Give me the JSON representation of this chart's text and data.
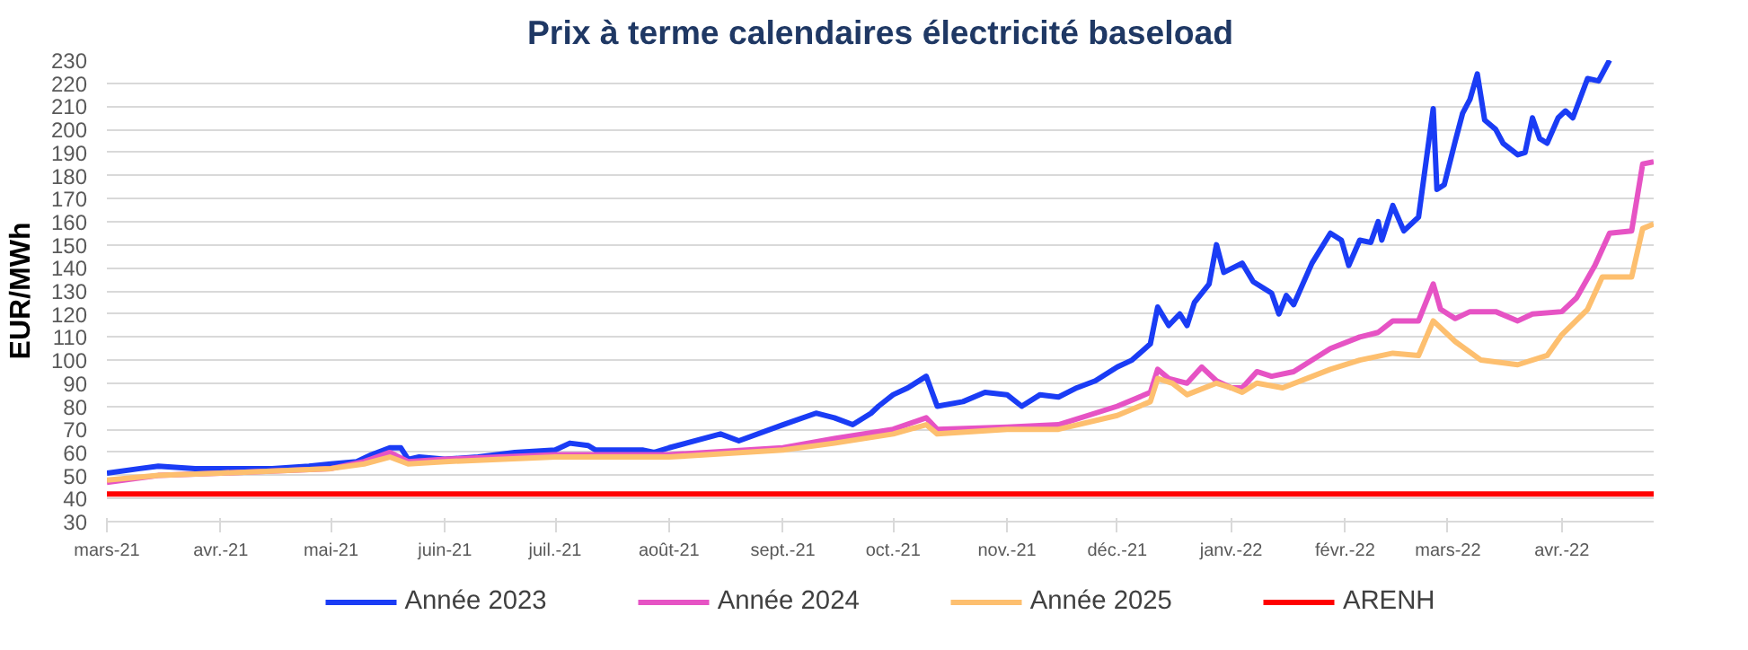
{
  "chart_data": {
    "type": "line",
    "title": "Prix à terme calendaires électricité baseload",
    "ylabel": "EUR/MWh",
    "xlim": [
      "2021-03-01",
      "2022-04-26"
    ],
    "xticks": [
      {
        "value": "2021-03-01",
        "label": "mars-21"
      },
      {
        "value": "2021-04-01",
        "label": "avr.-21"
      },
      {
        "value": "2021-05-01",
        "label": "mai-21"
      },
      {
        "value": "2021-06-01",
        "label": "juin-21"
      },
      {
        "value": "2021-07-01",
        "label": "juil.-21"
      },
      {
        "value": "2021-08-01",
        "label": "août-21"
      },
      {
        "value": "2021-09-01",
        "label": "sept.-21"
      },
      {
        "value": "2021-10-01",
        "label": "oct.-21"
      },
      {
        "value": "2021-11-01",
        "label": "nov.-21"
      },
      {
        "value": "2021-12-01",
        "label": "déc.-21"
      },
      {
        "value": "2022-01-01",
        "label": "janv.-22"
      },
      {
        "value": "2022-02-01",
        "label": "févr.-22"
      },
      {
        "value": "2022-03-01",
        "label": "mars-22"
      },
      {
        "value": "2022-04-01",
        "label": "avr.-22"
      }
    ],
    "ylim": [
      30,
      230
    ],
    "yticks": [
      30,
      40,
      50,
      60,
      70,
      80,
      90,
      100,
      110,
      120,
      130,
      140,
      150,
      160,
      170,
      180,
      190,
      200,
      210,
      220,
      230
    ],
    "grid": "y",
    "legend": "bottom",
    "line_style": "solid",
    "marker": "none",
    "series": [
      {
        "name": "Année 2023",
        "color": "#1a3cf5",
        "x": [
          "2021-03-01",
          "2021-03-10",
          "2021-03-15",
          "2021-03-25",
          "2021-04-01",
          "2021-04-15",
          "2021-04-25",
          "2021-05-01",
          "2021-05-08",
          "2021-05-12",
          "2021-05-17",
          "2021-05-20",
          "2021-05-22",
          "2021-05-25",
          "2021-06-01",
          "2021-06-10",
          "2021-06-20",
          "2021-07-01",
          "2021-07-05",
          "2021-07-10",
          "2021-07-12",
          "2021-07-25",
          "2021-07-28",
          "2021-08-01",
          "2021-08-15",
          "2021-08-20",
          "2021-09-01",
          "2021-09-10",
          "2021-09-15",
          "2021-09-20",
          "2021-09-25",
          "2021-09-27",
          "2021-10-01",
          "2021-10-05",
          "2021-10-10",
          "2021-10-13",
          "2021-10-20",
          "2021-10-26",
          "2021-11-01",
          "2021-11-05",
          "2021-11-10",
          "2021-11-15",
          "2021-11-20",
          "2021-11-25",
          "2021-12-01",
          "2021-12-05",
          "2021-12-10",
          "2021-12-12",
          "2021-12-15",
          "2021-12-18",
          "2021-12-20",
          "2021-12-22",
          "2021-12-26",
          "2021-12-28",
          "2021-12-30",
          "2022-01-04",
          "2022-01-07",
          "2022-01-12",
          "2022-01-14",
          "2022-01-16",
          "2022-01-18",
          "2022-01-23",
          "2022-01-28",
          "2022-01-31",
          "2022-02-02",
          "2022-02-05",
          "2022-02-08",
          "2022-02-10",
          "2022-02-11",
          "2022-02-14",
          "2022-02-17",
          "2022-02-21",
          "2022-02-25",
          "2022-02-26",
          "2022-02-28",
          "2022-03-03",
          "2022-03-05",
          "2022-03-07",
          "2022-03-09",
          "2022-03-11",
          "2022-03-14",
          "2022-03-16",
          "2022-03-20",
          "2022-03-22",
          "2022-03-24",
          "2022-03-26",
          "2022-03-28",
          "2022-03-31",
          "2022-04-02",
          "2022-04-04",
          "2022-04-08",
          "2022-04-11",
          "2022-04-14"
        ],
        "values": [
          51,
          53,
          54,
          53,
          53,
          53,
          54,
          55,
          56,
          59,
          62,
          62,
          57,
          58,
          57,
          58,
          60,
          61,
          64,
          63,
          61,
          61,
          60,
          62,
          68,
          65,
          72,
          77,
          75,
          72,
          77,
          80,
          85,
          88,
          93,
          80,
          82,
          86,
          85,
          80,
          85,
          84,
          88,
          91,
          97,
          100,
          107,
          123,
          115,
          120,
          115,
          125,
          133,
          150,
          138,
          142,
          134,
          129,
          120,
          128,
          124,
          142,
          155,
          152,
          141,
          152,
          151,
          160,
          152,
          167,
          156,
          162,
          209,
          174,
          176,
          195,
          207,
          213,
          224,
          204,
          200,
          194,
          189,
          190,
          205,
          196,
          194,
          205,
          208,
          205,
          222,
          221,
          230
        ]
      },
      {
        "name": "Année 2024",
        "color": "#e653c4",
        "x": [
          "2021-03-01",
          "2021-03-15",
          "2021-04-01",
          "2021-05-01",
          "2021-05-10",
          "2021-05-17",
          "2021-05-22",
          "2021-06-01",
          "2021-07-01",
          "2021-08-01",
          "2021-09-01",
          "2021-09-15",
          "2021-10-01",
          "2021-10-10",
          "2021-10-13",
          "2021-11-01",
          "2021-11-15",
          "2021-12-01",
          "2021-12-10",
          "2021-12-12",
          "2021-12-15",
          "2021-12-20",
          "2021-12-24",
          "2021-12-28",
          "2022-01-01",
          "2022-01-04",
          "2022-01-08",
          "2022-01-12",
          "2022-01-18",
          "2022-01-28",
          "2022-02-05",
          "2022-02-10",
          "2022-02-14",
          "2022-02-21",
          "2022-02-25",
          "2022-02-27",
          "2022-03-03",
          "2022-03-07",
          "2022-03-14",
          "2022-03-20",
          "2022-03-24",
          "2022-04-01",
          "2022-04-05",
          "2022-04-10",
          "2022-04-14",
          "2022-04-20",
          "2022-04-23",
          "2022-04-26"
        ],
        "values": [
          47,
          50,
          51,
          53,
          56,
          60,
          56,
          57,
          59,
          59,
          62,
          66,
          70,
          75,
          70,
          71,
          72,
          80,
          86,
          96,
          92,
          90,
          97,
          91,
          88,
          88,
          95,
          93,
          95,
          105,
          110,
          112,
          117,
          117,
          133,
          122,
          118,
          121,
          121,
          117,
          120,
          121,
          127,
          141,
          155,
          156,
          185,
          186
        ]
      },
      {
        "name": "Année 2025",
        "color": "#fdbf6f",
        "x": [
          "2021-03-01",
          "2021-03-15",
          "2021-04-01",
          "2021-05-01",
          "2021-05-10",
          "2021-05-17",
          "2021-05-22",
          "2021-06-01",
          "2021-07-01",
          "2021-08-01",
          "2021-09-01",
          "2021-09-15",
          "2021-10-01",
          "2021-10-10",
          "2021-10-13",
          "2021-11-01",
          "2021-11-15",
          "2021-12-01",
          "2021-12-10",
          "2021-12-12",
          "2021-12-16",
          "2021-12-20",
          "2021-12-28",
          "2022-01-01",
          "2022-01-04",
          "2022-01-08",
          "2022-01-15",
          "2022-01-28",
          "2022-02-05",
          "2022-02-14",
          "2022-02-21",
          "2022-02-25",
          "2022-03-03",
          "2022-03-10",
          "2022-03-20",
          "2022-03-28",
          "2022-04-01",
          "2022-04-08",
          "2022-04-12",
          "2022-04-20",
          "2022-04-23",
          "2022-04-26"
        ],
        "values": [
          48,
          50,
          51,
          53,
          55,
          58,
          55,
          56,
          58,
          58,
          61,
          64,
          68,
          72,
          68,
          70,
          70,
          76,
          82,
          92,
          90,
          85,
          90,
          88,
          86,
          90,
          88,
          96,
          100,
          103,
          102,
          117,
          108,
          100,
          98,
          102,
          111,
          122,
          136,
          136,
          157,
          159
        ]
      },
      {
        "name": "ARENH",
        "color": "#ff0000",
        "x": [
          "2021-03-01",
          "2022-04-26"
        ],
        "values": [
          42,
          42
        ]
      }
    ]
  }
}
